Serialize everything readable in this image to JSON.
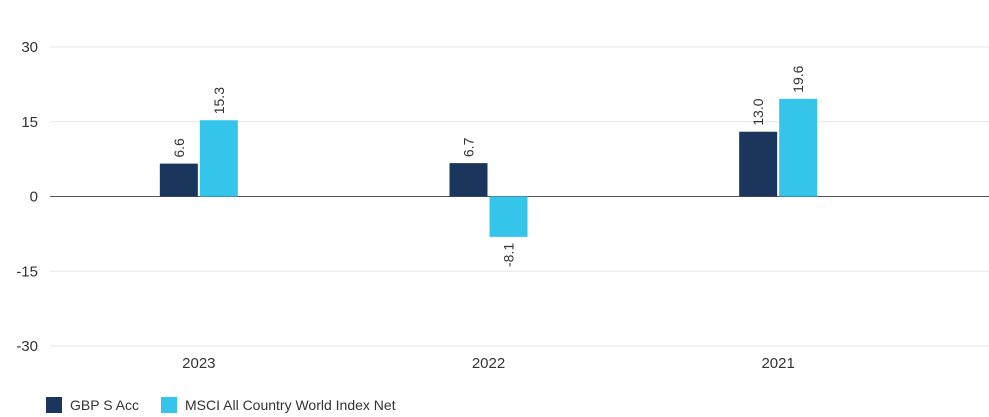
{
  "chart_data": {
    "type": "bar",
    "title": "",
    "xlabel": "",
    "ylabel": "",
    "categories": [
      "2023",
      "2022",
      "2021"
    ],
    "series": [
      {
        "name": "GBP S Acc",
        "values": [
          6.6,
          6.7,
          13.0
        ],
        "color": "#1b365d"
      },
      {
        "name": "MSCI All Country World Index Net",
        "values": [
          15.3,
          -8.1,
          19.6
        ],
        "color": "#35c5eb"
      }
    ],
    "ylim": [
      -30,
      30
    ],
    "yticks": [
      "30",
      "15",
      "0",
      "-15",
      "-30"
    ],
    "data_labels": [
      [
        "6.6",
        "6.7",
        "13.0"
      ],
      [
        "15.3",
        "-8.1",
        "19.6"
      ]
    ],
    "grid": true,
    "legend_position": "bottom-left"
  }
}
